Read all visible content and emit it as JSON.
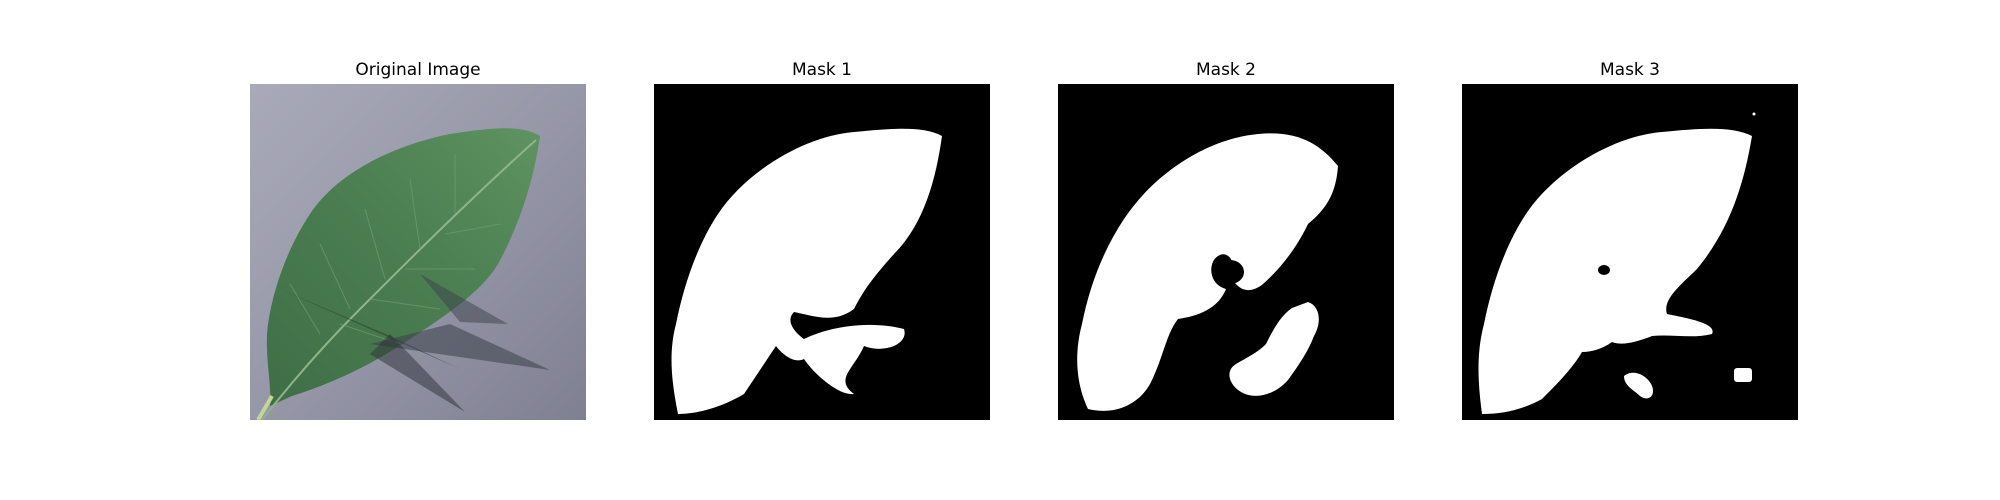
{
  "panels": [
    {
      "title": "Original Image"
    },
    {
      "title": "Mask 1"
    },
    {
      "title": "Mask 2"
    },
    {
      "title": "Mask 3"
    }
  ],
  "colors": {
    "background": "#ffffff",
    "mask_background": "#000000",
    "mask_foreground": "#ffffff",
    "leaf_green": "#4a7a50",
    "surface_gray": "#9a9aac"
  }
}
